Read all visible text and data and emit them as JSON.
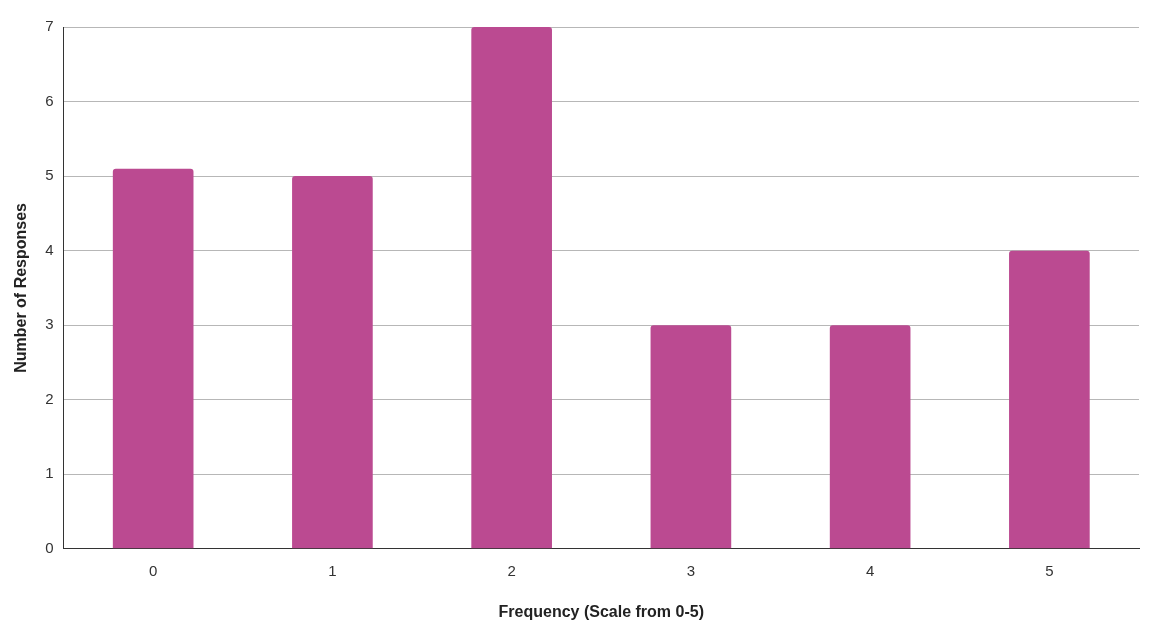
{
  "chart_data": {
    "type": "bar",
    "xlabel": "Frequency (Scale from 0-5)",
    "ylabel": "Number of Responses",
    "categories": [
      "0",
      "1",
      "2",
      "3",
      "4",
      "5"
    ],
    "values": [
      5.1,
      5,
      7,
      3,
      3,
      4
    ],
    "color": "#bb4a91",
    "ylim": [
      0,
      7
    ],
    "yticks": [
      0,
      1,
      2,
      3,
      4,
      5,
      6,
      7
    ],
    "grid": "y",
    "legend": false
  }
}
